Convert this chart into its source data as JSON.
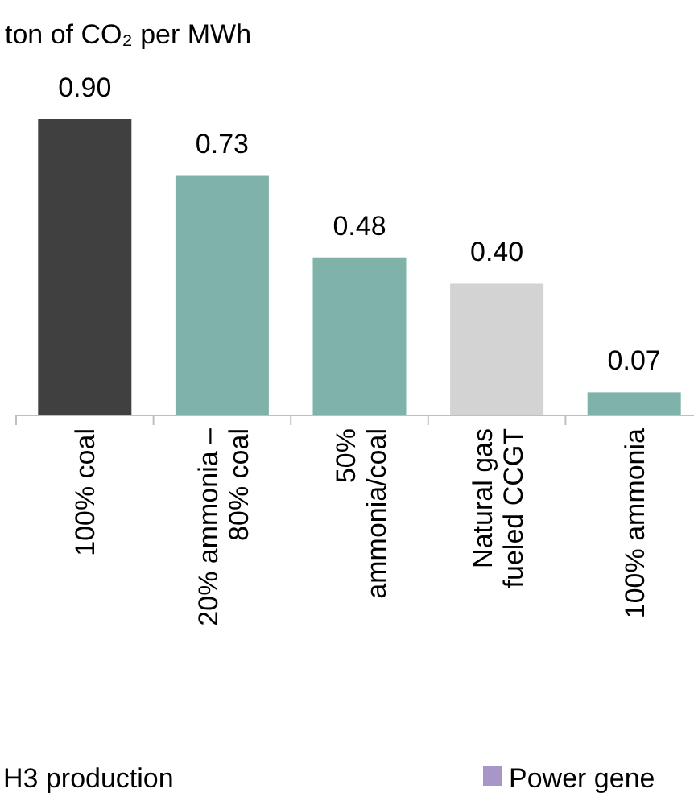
{
  "chart_data": {
    "type": "bar",
    "title": "ton of CO₂ per MWh",
    "categories": [
      "100% coal",
      "20% ammonia –\n80% coal",
      "50%\nammonia/coal",
      "Natural gas\nfueled CCGT",
      "100% ammonia"
    ],
    "values": [
      0.9,
      0.73,
      0.48,
      0.4,
      0.07
    ],
    "colors": [
      "#404040",
      "#7fb3aa",
      "#7fb3aa",
      "#d3d3d3",
      "#7fb3aa"
    ],
    "value_labels": [
      "0.90",
      "0.73",
      "0.48",
      "0.40",
      "0.07"
    ],
    "annotations": [
      "H3 production",
      "Power gene"
    ]
  }
}
